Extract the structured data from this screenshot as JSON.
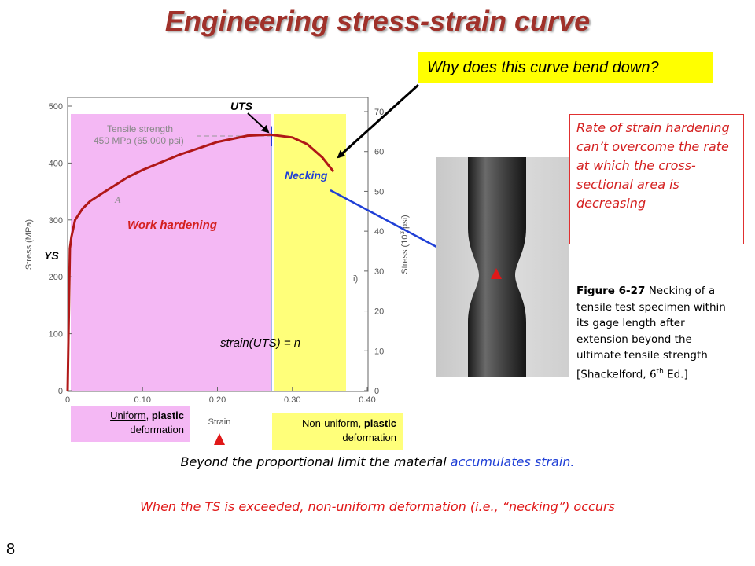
{
  "title": "Engineering stress-strain curve",
  "question": "Why does this curve bend down?",
  "note": "Rate of strain hardening can’t overcome the rate at which the cross-sectional area is decreasing",
  "caption": {
    "figure": "Figure 6-27",
    "text": " Necking of a tensile test specimen within its gage length after extension beyond the ultimate tensile strength [Shackelford, 6",
    "sup": "th",
    "end": " Ed.]"
  },
  "regions": {
    "uniform": {
      "word1": "Uniform",
      "sep": ", ",
      "word2": "plastic",
      "line2": "deformation"
    },
    "nonuniform": {
      "word1": "Non-uniform",
      "sep": ", ",
      "word2": "plastic",
      "line2": "deformation"
    }
  },
  "statement1": {
    "prefix": "Beyond the proportional limit the material ",
    "highlight": "accumulates strain."
  },
  "statement2": "When the TS is exceeded, non-uniform deformation (i.e., “necking”) occurs",
  "page_number": "8",
  "colors": {
    "title": "#a0312a",
    "curve": "#b01818",
    "uniform_region": "#f4b8f4",
    "necking_region": "#ffff7a",
    "annotation_red": "#d42020",
    "annotation_blue": "#1f3fd6",
    "question_bg": "#ffff00"
  },
  "chart_data": {
    "type": "line",
    "xlabel": "Strain",
    "ylabel": "Stress (MPa)",
    "y2label_main": "Stress (10",
    "y2label_sup": "3",
    "y2label_end": " psi)",
    "xlim": [
      0,
      0.4
    ],
    "ylim": [
      0,
      500
    ],
    "y2lim": [
      0,
      70
    ],
    "xticks": [
      0,
      0.1,
      0.2,
      0.3,
      0.4
    ],
    "xtick_labels": [
      "0",
      "0.10",
      "0.20",
      "0.30",
      "0.40"
    ],
    "yticks": [
      0,
      100,
      200,
      300,
      400,
      500
    ],
    "y2ticks": [
      0,
      10,
      20,
      30,
      40,
      50,
      60,
      70
    ],
    "series": [
      {
        "x": [
          0,
          0.003,
          0.005,
          0.01,
          0.02,
          0.03,
          0.05,
          0.08,
          0.1,
          0.15,
          0.2,
          0.24,
          0.27,
          0.3,
          0.32,
          0.34,
          0.355
        ],
        "y": [
          0,
          250,
          270,
          300,
          320,
          333,
          350,
          375,
          388,
          415,
          437,
          448,
          450,
          445,
          433,
          410,
          385
        ]
      }
    ],
    "uts_strain": 0.27,
    "tensile_strength_label_line1": "Tensile strength",
    "tensile_strength_label_line2": "450 MPa (65,000 psi)",
    "point_label": "A",
    "labels": {
      "uts": "UTS",
      "ys": "YS",
      "necking": "Necking",
      "work_hardening": "Work hardening",
      "strain_uts": "strain(UTS) = n"
    }
  }
}
